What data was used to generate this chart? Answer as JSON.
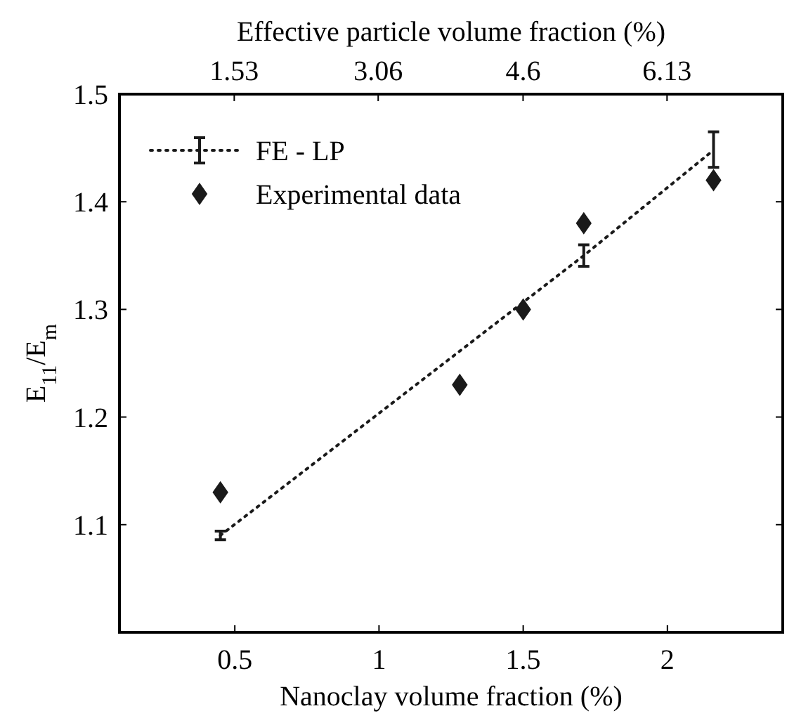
{
  "chart_data": {
    "type": "line",
    "xlabel": "Nanoclay volume fraction (%)",
    "x2label": "Effective particle volume fraction (%)",
    "ylabel": "E$_{11}$/E$_{m}$",
    "xlim": [
      0.1,
      2.4
    ],
    "xticks": [
      0.5,
      1,
      1.5,
      2
    ],
    "x2lim": [
      0.31,
      7.36
    ],
    "x2ticks": [
      1.53,
      3.06,
      4.6,
      6.13
    ],
    "ylim": [
      1.0,
      1.5
    ],
    "yticks": [
      1.1,
      1.2,
      1.3,
      1.4,
      1.5
    ],
    "grid": false,
    "legend": "top left",
    "series": [
      {
        "name": "FE - LP",
        "color": "#1a1a1a",
        "marker": "none",
        "line_style": "dotted",
        "x": [
          0.45,
          1.71,
          2.16
        ],
        "values": [
          1.09,
          1.35,
          1.448
        ],
        "errors": [
          0.004,
          0.01,
          [
            1.432,
            1.465
          ]
        ]
      },
      {
        "name": "Experimental data",
        "type": "scatter",
        "color": "#1a1a1a",
        "marker": "diamond",
        "x": [
          0.45,
          1.28,
          1.5,
          1.71,
          2.16
        ],
        "values": [
          1.13,
          1.23,
          1.3,
          1.38,
          1.42
        ]
      }
    ]
  }
}
